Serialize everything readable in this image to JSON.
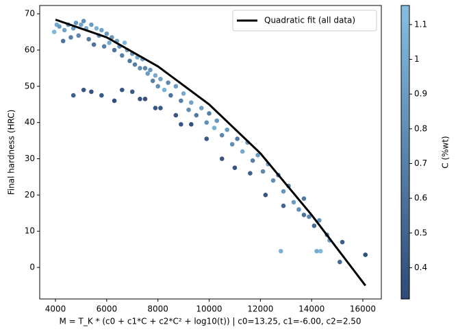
{
  "chart_data": {
    "type": "scatter",
    "x_label": "M = T_K * (c0 + c1*C + c2*C² + log10(t))  |  c0=13.25, c1=-6.00, c2=2.50",
    "y_label": "Final hardness (HRC)",
    "xlim": [
      3385,
      16722
    ],
    "ylim": [
      -8.7,
      72.3
    ],
    "xticks": [
      4000,
      6000,
      8000,
      10000,
      12000,
      14000,
      16000
    ],
    "yticks": [
      0,
      10,
      20,
      30,
      40,
      50,
      60,
      70
    ],
    "x": [
      3950,
      4050,
      4150,
      4300,
      4350,
      4500,
      4600,
      4700,
      4800,
      4900,
      5000,
      5100,
      5200,
      5300,
      5400,
      5500,
      5600,
      5700,
      5800,
      5900,
      6000,
      6100,
      6200,
      6300,
      6400,
      6500,
      6600,
      6700,
      6800,
      6900,
      7000,
      7100,
      7200,
      7300,
      7400,
      7500,
      7600,
      7700,
      7800,
      7900,
      8000,
      8100,
      8250,
      8400,
      8500,
      8700,
      8900,
      9000,
      9200,
      9300,
      9500,
      9700,
      9900,
      10000,
      10200,
      10300,
      10500,
      10700,
      10900,
      11100,
      11300,
      11500,
      11700,
      11900,
      12100,
      12300,
      12500,
      12700,
      12900,
      13100,
      13300,
      13500,
      13700,
      13900,
      14100,
      14300,
      14600,
      14700,
      15200,
      15100,
      16100,
      12800,
      14200,
      14350,
      4700,
      5100,
      5400,
      5800,
      6300,
      6600,
      7000,
      7300,
      7500,
      7900,
      8100,
      8700,
      8900,
      9300,
      9900,
      10500,
      11000,
      11600,
      12200,
      12900,
      13700
    ],
    "y": [
      65,
      67,
      66.5,
      62.5,
      65.5,
      67,
      63.5,
      66,
      67.5,
      64,
      67,
      68,
      66,
      63,
      67,
      61.5,
      66,
      64,
      65.5,
      61,
      64.5,
      62,
      63.5,
      60,
      62.5,
      61,
      58.5,
      62,
      60,
      57,
      59,
      56,
      58,
      55,
      57.5,
      55,
      53.5,
      54.5,
      51.5,
      53,
      50,
      52,
      49,
      51,
      47.5,
      50,
      46,
      48,
      43.5,
      45.5,
      42,
      44,
      40,
      42.5,
      38.5,
      40.5,
      36.5,
      38,
      34,
      35.5,
      32,
      34.5,
      29.5,
      31,
      26.5,
      28.5,
      24,
      25.5,
      21,
      22.5,
      18,
      16,
      19,
      14,
      11.5,
      13,
      9,
      7.5,
      7,
      1.5,
      3.5,
      4.5,
      4.5,
      4.5,
      47.5,
      49,
      48.5,
      47.5,
      46,
      49,
      48.5,
      46.5,
      46.5,
      44,
      44,
      42,
      39.5,
      39.5,
      35.5,
      30,
      27.5,
      26,
      20,
      17,
      14.5
    ],
    "c": [
      1.1,
      1.0,
      0.9,
      0.6,
      0.95,
      0.8,
      0.7,
      0.9,
      0.85,
      0.75,
      0.95,
      0.8,
      1.0,
      0.65,
      0.9,
      0.6,
      1.05,
      0.8,
      0.95,
      0.7,
      0.9,
      1.0,
      0.85,
      0.6,
      0.95,
      0.8,
      0.7,
      1.1,
      0.9,
      0.65,
      0.85,
      0.7,
      1.0,
      0.8,
      0.95,
      0.75,
      0.9,
      0.85,
      0.7,
      1.0,
      0.8,
      0.95,
      1.05,
      0.75,
      0.6,
      0.9,
      0.7,
      1.0,
      0.8,
      0.95,
      0.65,
      0.9,
      0.8,
      0.7,
      1.05,
      0.85,
      0.75,
      0.9,
      0.8,
      0.65,
      1.0,
      0.85,
      0.7,
      0.9,
      0.75,
      0.95,
      0.8,
      0.6,
      0.85,
      0.7,
      0.9,
      0.8,
      0.65,
      0.75,
      0.55,
      0.85,
      0.7,
      0.9,
      0.45,
      0.55,
      0.35,
      1.05,
      1.0,
      1.1,
      0.45,
      0.4,
      0.38,
      0.42,
      0.35,
      0.4,
      0.44,
      0.38,
      0.36,
      0.4,
      0.42,
      0.38,
      0.4,
      0.36,
      0.42,
      0.4,
      0.38,
      0.45,
      0.4,
      0.5,
      0.6
    ],
    "colormap": [
      "#2e4a78",
      "#86bfe2"
    ],
    "clim": [
      0.31,
      1.155
    ],
    "cticks": [
      0.4,
      0.5,
      0.6,
      0.7,
      0.8,
      0.9,
      1.0,
      1.1
    ],
    "c_label": "C (%wt)",
    "fit": {
      "name": "Quadratic fit (all data)",
      "color": "#000000",
      "x": [
        4000,
        6000,
        8000,
        10000,
        12000,
        14000,
        16100
      ],
      "y": [
        68.4,
        63.5,
        55.5,
        45,
        31.5,
        14.5,
        -5
      ]
    },
    "legend": "upper right"
  }
}
